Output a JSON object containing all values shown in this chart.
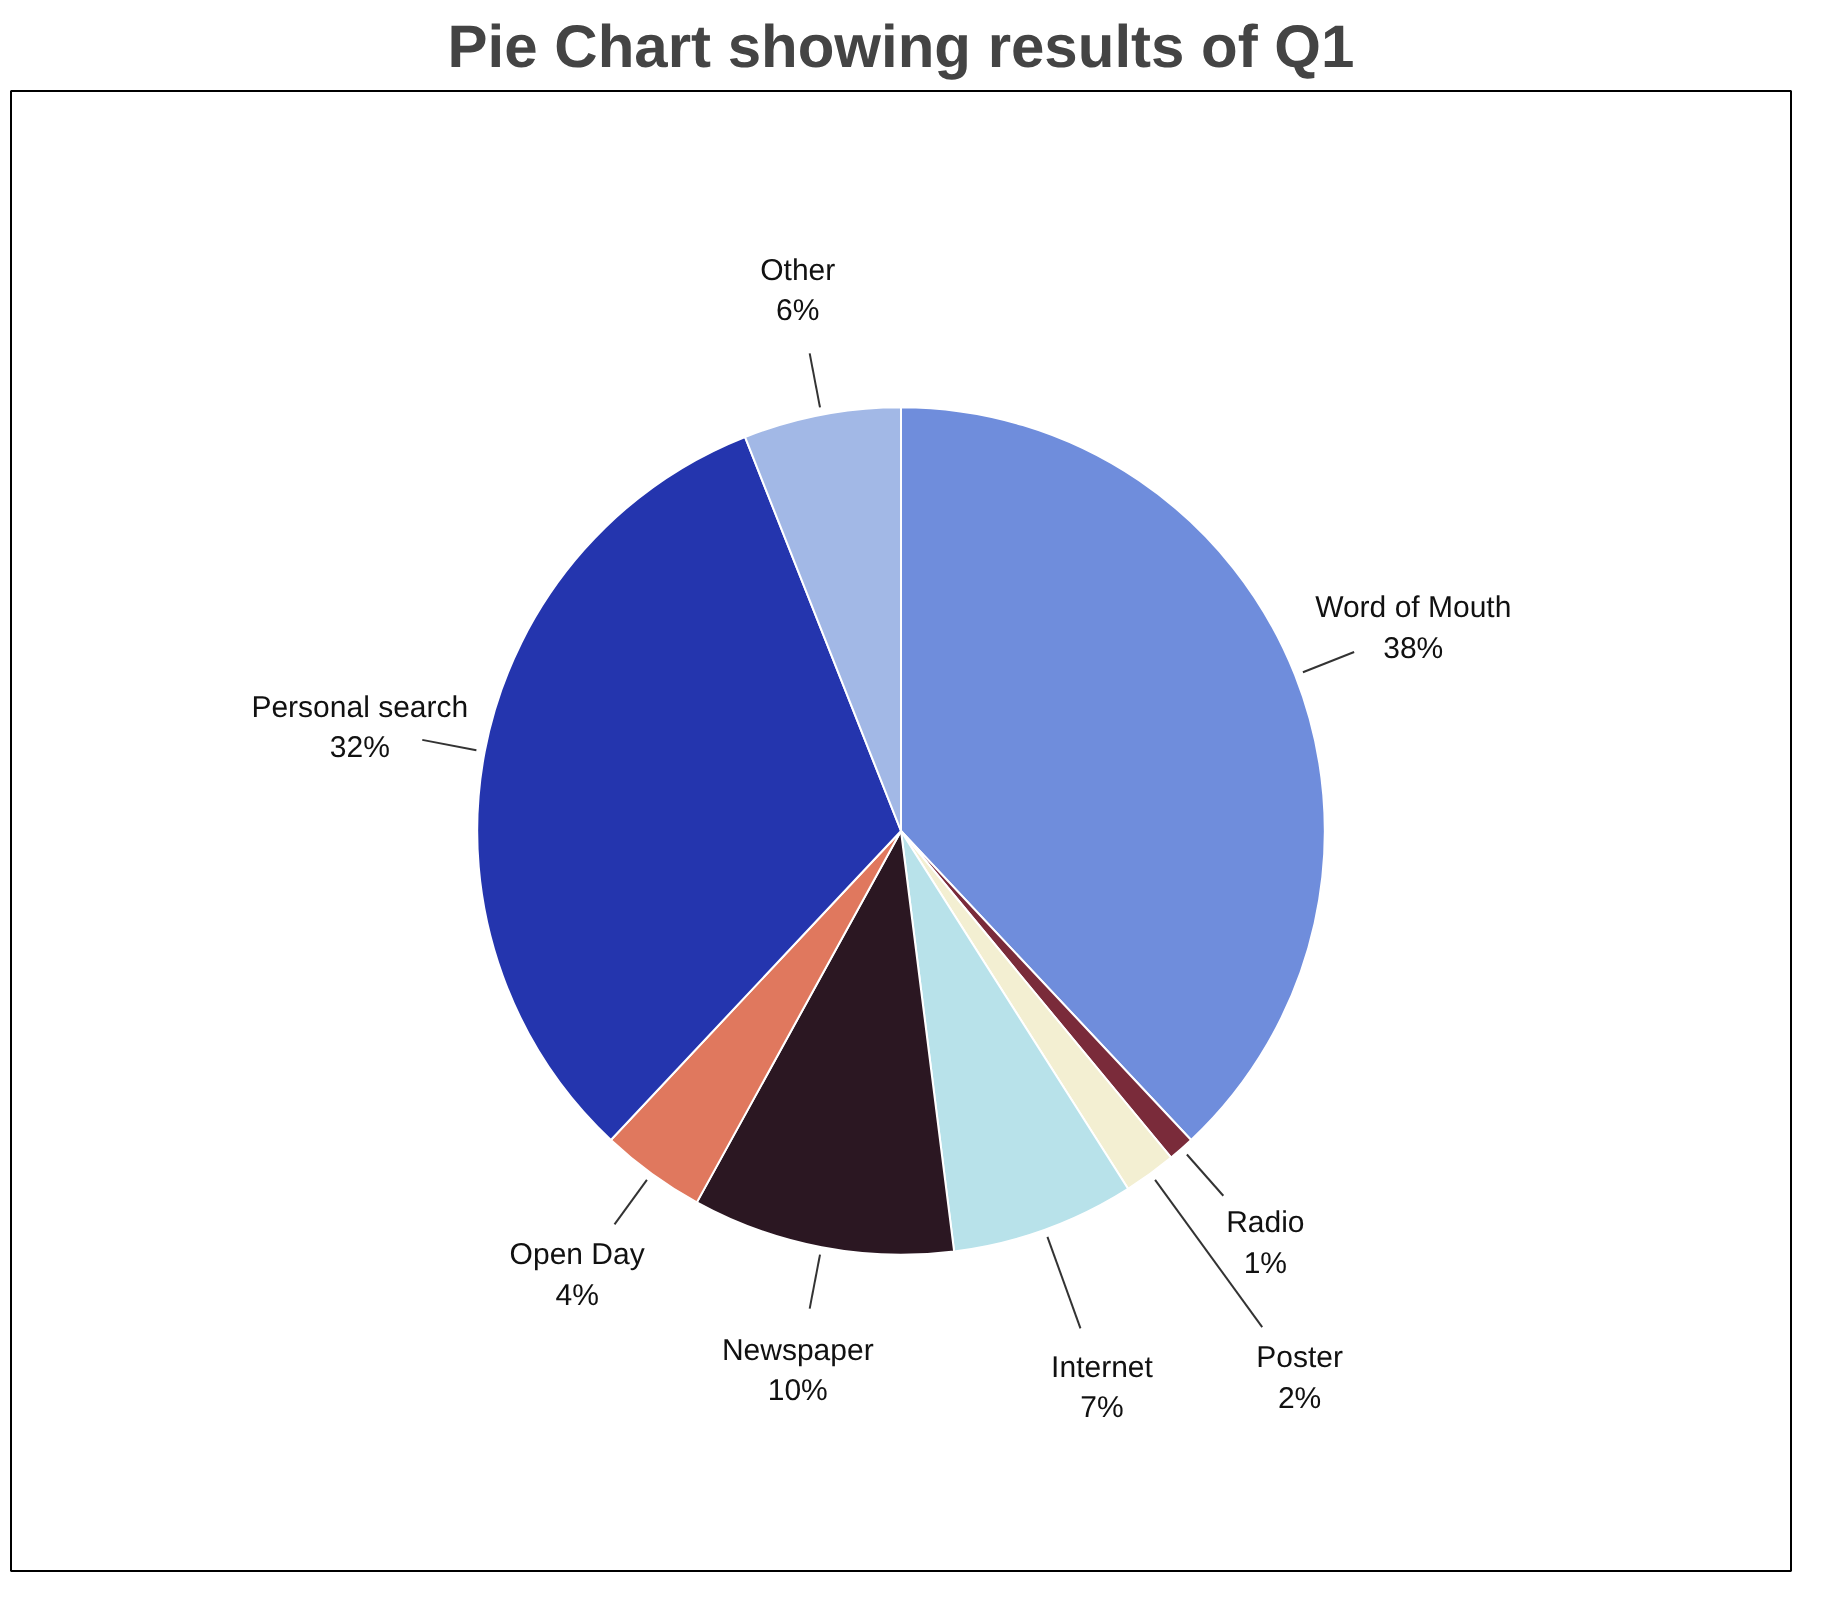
{
  "chart_data": {
    "type": "pie",
    "title": "Pie Chart showing results of Q1",
    "categories": [
      "Word of Mouth",
      "Radio",
      "Poster",
      "Internet",
      "Newspaper",
      "Open Day",
      "Personal search",
      "Other"
    ],
    "values": [
      38,
      1,
      2,
      7,
      10,
      4,
      32,
      6
    ],
    "value_labels": [
      "38%",
      "1%",
      "2%",
      "7%",
      "10%",
      "4%",
      "32%",
      "6%"
    ],
    "colors": [
      "#6f8ddc",
      "#7a2b3a",
      "#f3efd2",
      "#b8e2ea",
      "#2b1722",
      "#e0785e",
      "#2435ae",
      "#a2b8e6"
    ]
  }
}
